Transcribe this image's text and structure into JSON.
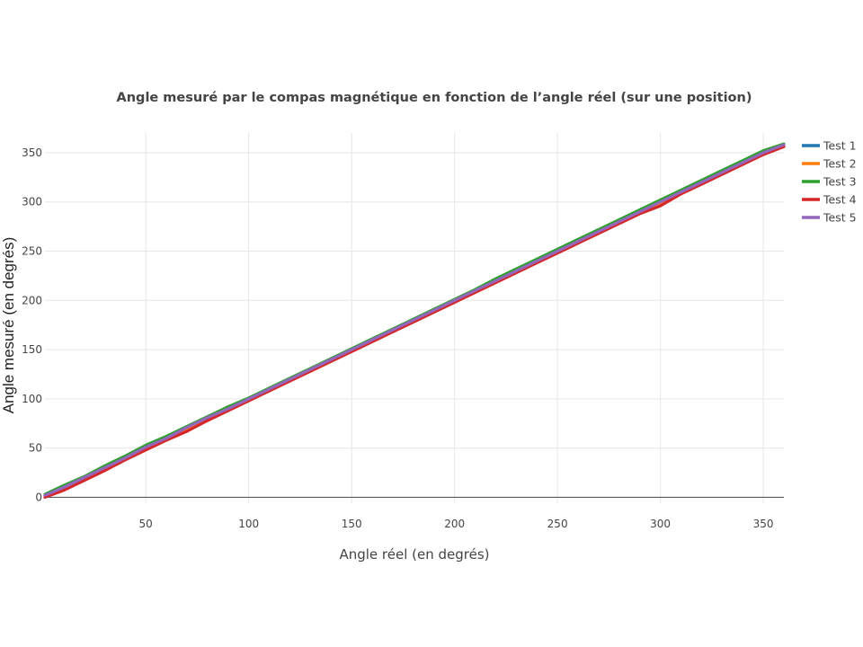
{
  "chart_data": {
    "type": "line",
    "title": "Angle mesuré par le compas magnétique en fonction de l’angle réel (sur une position)",
    "xlabel": "Angle réel (en degrés)",
    "ylabel": "Angle mesuré (en degrés)",
    "xlim": [
      1,
      360
    ],
    "ylim": [
      -6,
      370
    ],
    "xticks": [
      50,
      100,
      150,
      200,
      250,
      300,
      350
    ],
    "yticks": [
      0,
      50,
      100,
      150,
      200,
      250,
      300,
      350
    ],
    "grid": true,
    "legend_position": "top-right",
    "x": [
      1,
      10,
      20,
      30,
      40,
      50,
      60,
      70,
      80,
      90,
      100,
      110,
      120,
      130,
      140,
      150,
      160,
      170,
      180,
      190,
      200,
      210,
      220,
      230,
      240,
      250,
      260,
      270,
      280,
      290,
      300,
      310,
      320,
      330,
      340,
      350,
      360
    ],
    "series": [
      {
        "name": "Test 1",
        "color": "#1f77b4",
        "values": [
          2,
          10,
          20,
          30,
          40,
          50,
          60,
          70,
          80,
          90,
          100,
          110,
          120,
          130,
          140,
          150,
          160,
          170,
          180,
          190,
          200,
          210,
          220,
          230,
          240,
          250,
          260,
          270,
          280,
          290,
          300,
          310,
          320,
          330,
          340,
          350,
          358
        ]
      },
      {
        "name": "Test 2",
        "color": "#ff7f0e",
        "values": [
          1,
          9,
          19,
          29,
          39,
          49,
          59,
          69,
          79,
          89,
          99,
          109,
          119,
          129,
          139,
          149,
          159,
          169,
          179,
          189,
          199,
          209,
          219,
          229,
          239,
          249,
          259,
          269,
          279,
          289,
          299,
          309,
          319,
          329,
          339,
          349,
          357
        ]
      },
      {
        "name": "Test 3",
        "color": "#2ca02c",
        "values": [
          3,
          12,
          21,
          32,
          42,
          53,
          62,
          72,
          82,
          92,
          101,
          111,
          121,
          131,
          141,
          151,
          161,
          171,
          181,
          191,
          201,
          211,
          222,
          232,
          242,
          252,
          262,
          272,
          282,
          292,
          302,
          312,
          322,
          332,
          342,
          352,
          359
        ]
      },
      {
        "name": "Test 4",
        "color": "#d62728",
        "values": [
          0,
          7,
          17,
          27,
          38,
          48,
          58,
          67,
          78,
          88,
          98,
          108,
          118,
          128,
          138,
          148,
          158,
          168,
          178,
          188,
          198,
          208,
          218,
          228,
          238,
          248,
          258,
          268,
          278,
          288,
          296,
          308,
          318,
          328,
          338,
          348,
          356
        ]
      },
      {
        "name": "Test 5",
        "color": "#9467bd",
        "values": [
          2,
          10,
          20,
          30,
          40,
          51,
          60,
          71,
          81,
          90,
          100,
          110,
          120,
          130,
          140,
          150,
          160,
          170,
          180,
          190,
          200,
          210,
          220,
          230,
          240,
          250,
          260,
          270,
          280,
          290,
          300,
          310,
          320,
          330,
          340,
          350,
          358
        ]
      }
    ]
  }
}
